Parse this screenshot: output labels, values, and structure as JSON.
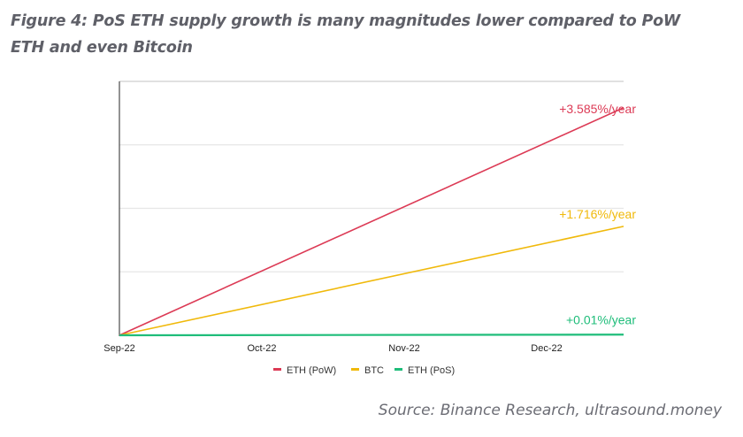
{
  "figure": {
    "title": "Figure 4: PoS ETH supply growth is many magnitudes lower compared to PoW ETH and even Bitcoin",
    "source": "Source: Binance Research, ultrasound.money"
  },
  "chart_data": {
    "type": "line",
    "title": "Figure 4: PoS ETH supply growth is many magnitudes lower compared to PoW ETH and even Bitcoin",
    "xlabel": "",
    "ylabel": "",
    "x_ticks": [
      "Sep-22",
      "Oct-22",
      "Nov-22",
      "Dec-22"
    ],
    "x_range_months": [
      0,
      3.6
    ],
    "y_range": [
      0,
      4
    ],
    "y_gridlines": [
      1,
      2,
      3,
      4
    ],
    "grid": true,
    "legend_position": "bottom-center",
    "series": [
      {
        "name": "ETH (PoW)",
        "color": "#dc3a55",
        "x": [
          0,
          3.6
        ],
        "values": [
          0,
          3.585
        ],
        "annotation": "+3.585%/year"
      },
      {
        "name": "BTC",
        "color": "#f0b90b",
        "x": [
          0,
          3.6
        ],
        "values": [
          0,
          1.716
        ],
        "annotation": "+1.716%/year"
      },
      {
        "name": "ETH (PoS)",
        "color": "#1fbd7a",
        "x": [
          0,
          3.6
        ],
        "values": [
          0,
          0.01
        ],
        "annotation": "+0.01%/year"
      }
    ]
  }
}
